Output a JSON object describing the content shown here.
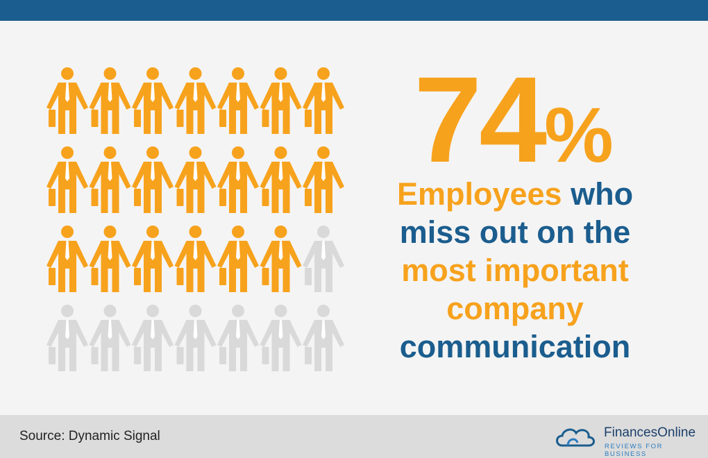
{
  "stat": {
    "number": "74",
    "unit": "%"
  },
  "headline": [
    [
      {
        "text": "Employees",
        "tone": "orange"
      },
      {
        "text": "who",
        "tone": "blue"
      }
    ],
    [
      {
        "text": "miss out on the",
        "tone": "blue"
      }
    ],
    [
      {
        "text": "most important",
        "tone": "orange"
      }
    ],
    [
      {
        "text": "company",
        "tone": "orange"
      }
    ],
    [
      {
        "text": "communication",
        "tone": "blue"
      }
    ]
  ],
  "footer": {
    "source": "Source: Dynamic Signal",
    "brand": "FinancesOnline",
    "tagline": "REVIEWS FOR BUSINESS"
  }
}
